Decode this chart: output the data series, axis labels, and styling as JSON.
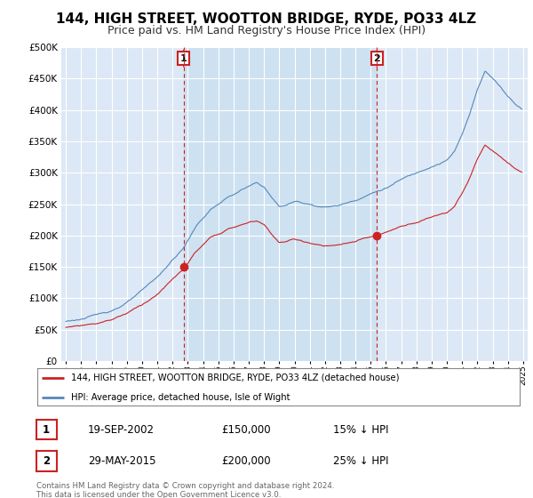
{
  "title": "144, HIGH STREET, WOOTTON BRIDGE, RYDE, PO33 4LZ",
  "subtitle": "Price paid vs. HM Land Registry's House Price Index (HPI)",
  "ylim": [
    0,
    500000
  ],
  "yticks": [
    0,
    50000,
    100000,
    150000,
    200000,
    250000,
    300000,
    350000,
    400000,
    450000,
    500000
  ],
  "xlim_start": 1994.7,
  "xlim_end": 2025.3,
  "plot_background": "#dce8f5",
  "shade_color": "#c8dff0",
  "grid_color": "white",
  "hpi_color": "#5588bb",
  "price_color": "#cc2222",
  "sale1_x": 2002.72,
  "sale1_y": 150000,
  "sale2_x": 2015.41,
  "sale2_y": 200000,
  "legend_label_price": "144, HIGH STREET, WOOTTON BRIDGE, RYDE, PO33 4LZ (detached house)",
  "legend_label_hpi": "HPI: Average price, detached house, Isle of Wight",
  "title_fontsize": 11,
  "subtitle_fontsize": 9
}
